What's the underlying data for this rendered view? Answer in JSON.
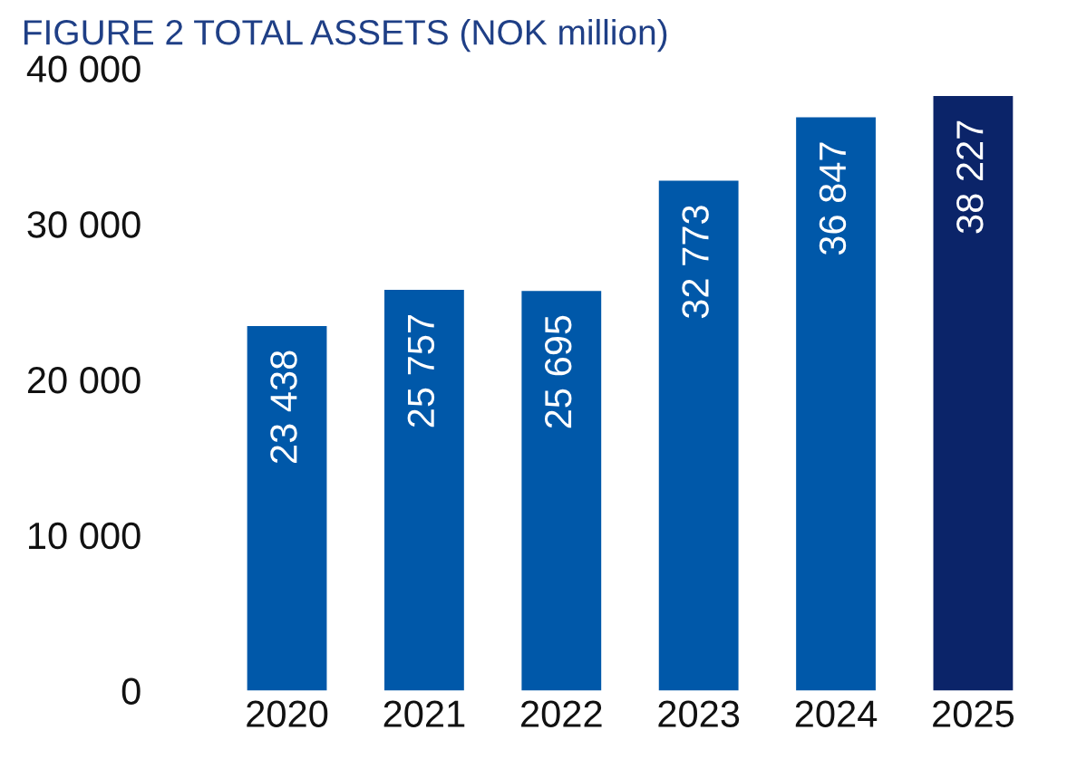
{
  "chart_data": {
    "type": "bar",
    "title": "FIGURE 2 TOTAL ASSETS (NOK million)",
    "categories": [
      "2020",
      "2021",
      "2022",
      "2023",
      "2024",
      "2025"
    ],
    "values": [
      23438,
      25757,
      25695,
      32773,
      36847,
      38227
    ],
    "colors": [
      "#0058a9",
      "#0058a9",
      "#0058a9",
      "#0058a9",
      "#0058a9",
      "#0b2469"
    ],
    "value_labels": [
      "23 438",
      "25 757",
      "25 695",
      "32 773",
      "36 847",
      "38 227"
    ],
    "ylim": [
      0,
      40000
    ],
    "yticks": [
      {
        "value": 0,
        "label": "0"
      },
      {
        "value": 10000,
        "label": "10 000"
      },
      {
        "value": 20000,
        "label": "20 000"
      },
      {
        "value": 30000,
        "label": "30 000"
      },
      {
        "value": 40000,
        "label": "40 000"
      }
    ],
    "grid": false,
    "legend": false
  }
}
